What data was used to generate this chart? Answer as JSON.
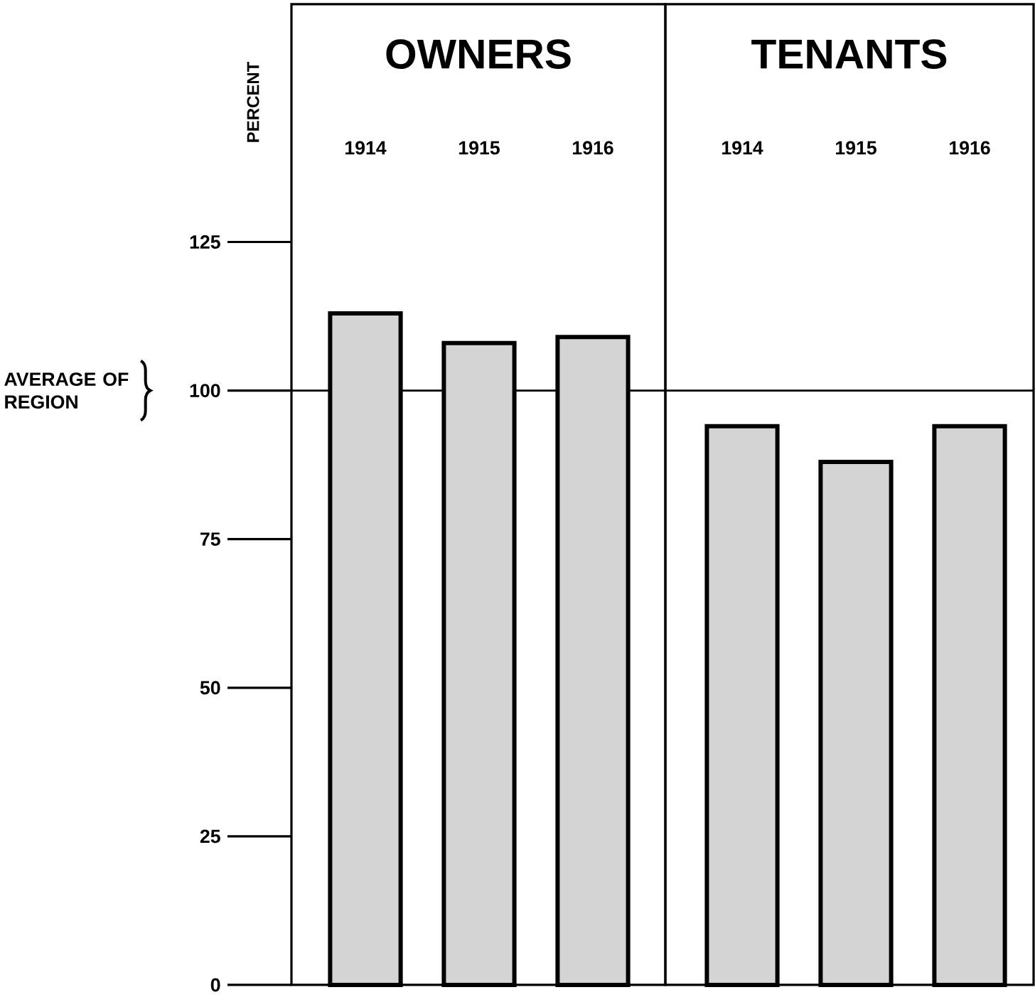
{
  "chart_data": [
    {
      "type": "bar",
      "title": "OWNERS",
      "ylabel": "PERCENT",
      "categories": [
        "1914",
        "1915",
        "1916"
      ],
      "values": [
        113,
        108,
        109
      ],
      "color": "#d4d4d4",
      "ylim": [
        0,
        165
      ],
      "yticks": [
        0,
        25,
        50,
        75,
        100,
        125
      ],
      "ref_lines": [
        {
          "axis": "y",
          "value": 100,
          "label": "AVERAGE OF REGION"
        }
      ]
    },
    {
      "type": "bar",
      "title": "TENANTS",
      "categories": [
        "1914",
        "1915",
        "1916"
      ],
      "values": [
        94,
        88,
        94
      ],
      "color": "#d4d4d4",
      "ylim": [
        0,
        165
      ],
      "yticks": [
        0,
        25,
        50,
        75,
        100,
        125
      ],
      "tick_labels": "x",
      "ref_lines": [
        {
          "axis": "y",
          "value": 100
        }
      ]
    }
  ]
}
